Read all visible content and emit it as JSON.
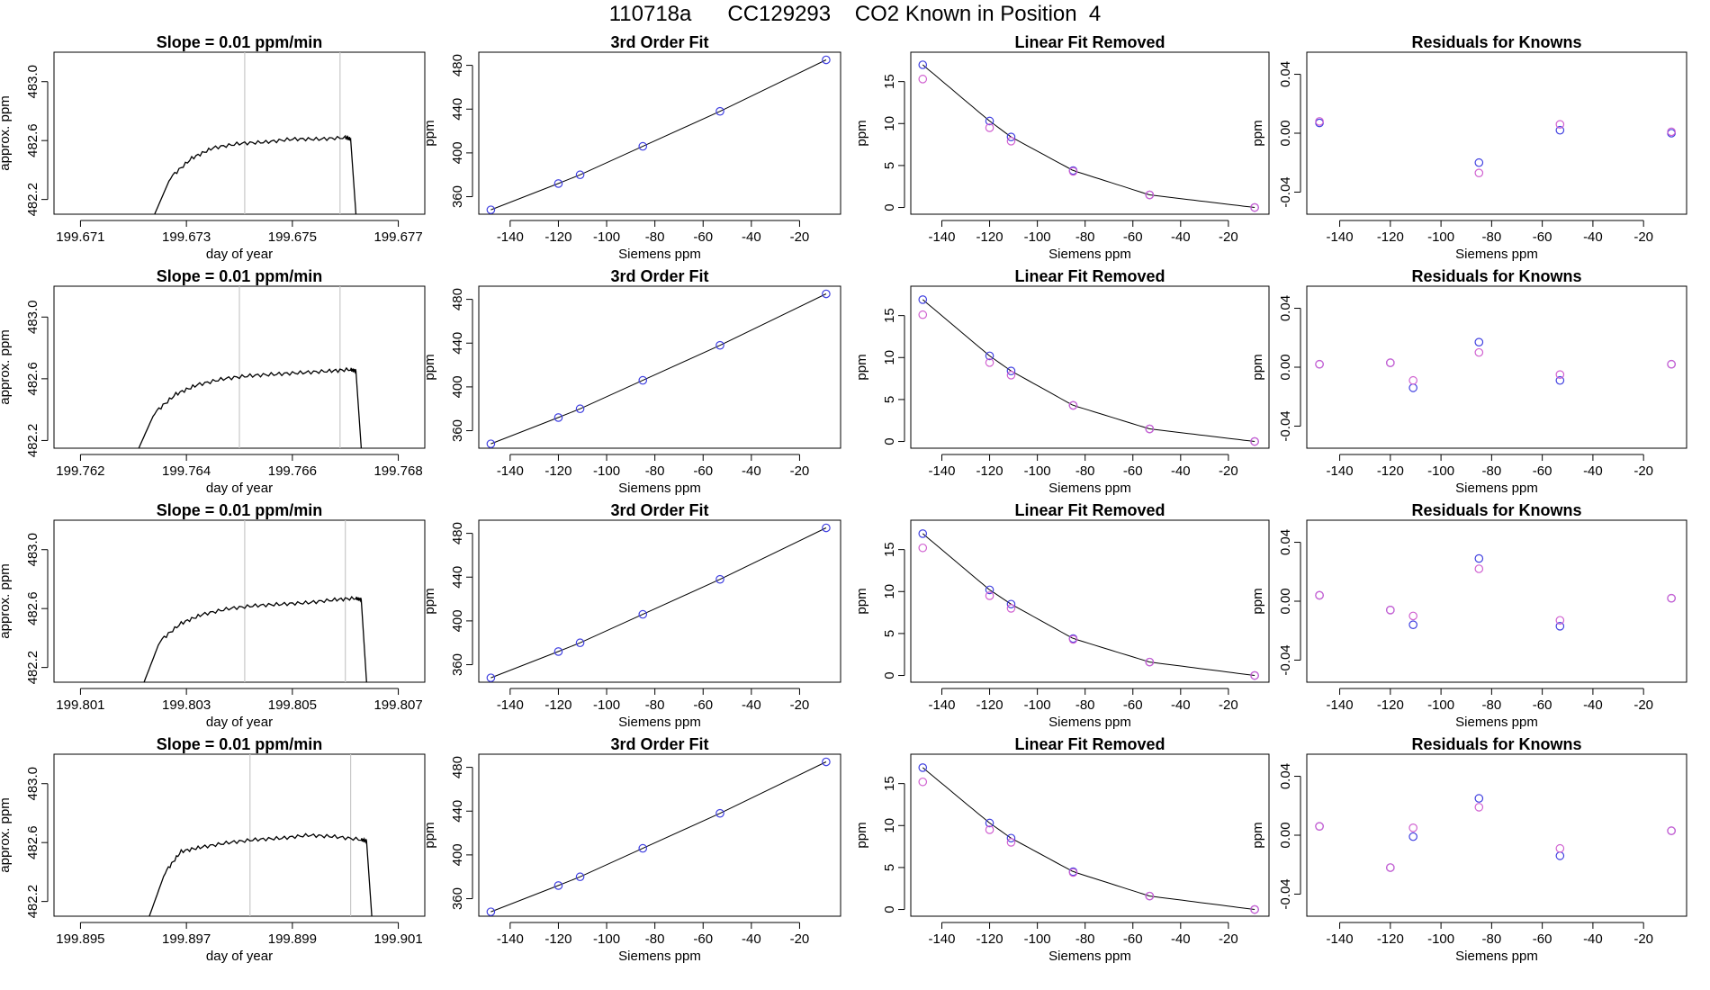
{
  "page_title": "110718a      CC129293    CO2 Known in Position  4",
  "colors": {
    "trace": "#000000",
    "vline": "#c8c8c8",
    "marker_primary": "#4040e0",
    "marker_secondary": "#d060d0",
    "fit_line": "#000000"
  },
  "chart_data": [
    {
      "type": "line",
      "title": "Slope =  0.01  ppm/min",
      "xlabel": "day of year",
      "ylabel": "approx. ppm",
      "xlim": [
        199.6705,
        199.6775
      ],
      "ylim": [
        482.1,
        483.2
      ],
      "xticks": [
        "199.671",
        "199.673",
        "199.675",
        "199.677"
      ],
      "xtick_values": [
        199.671,
        199.673,
        199.675,
        199.677
      ],
      "yticks": [
        "482.2",
        "482.6",
        "483.0"
      ],
      "ytick_values": [
        482.2,
        482.6,
        483.0
      ],
      "vlines": [
        199.6741,
        199.6759
      ],
      "x": [
        199.6724,
        199.6727,
        199.6731,
        199.6735,
        199.674,
        199.6745,
        199.675,
        199.6755,
        199.676,
        199.6761,
        199.6762
      ],
      "y": [
        482.1,
        482.35,
        482.48,
        482.55,
        482.58,
        482.59,
        482.61,
        482.61,
        482.62,
        482.61,
        482.1
      ]
    },
    {
      "type": "scatter",
      "title": "3rd Order Fit",
      "xlabel": "Siemens ppm",
      "ylabel": "ppm",
      "xlim": [
        -153,
        -3
      ],
      "ylim": [
        344,
        492
      ],
      "xticks": [
        "-140",
        "-120",
        "-100",
        "-80",
        "-60",
        "-40",
        "-20"
      ],
      "xtick_values": [
        -140,
        -120,
        -100,
        -80,
        -60,
        -40,
        -20
      ],
      "yticks": [
        "360",
        "400",
        "440",
        "480"
      ],
      "ytick_values": [
        360,
        400,
        440,
        480
      ],
      "x": [
        -148,
        -120,
        -111,
        -85,
        -53,
        -9
      ],
      "y": [
        348,
        372,
        380,
        406,
        438,
        485
      ]
    },
    {
      "type": "scatter",
      "title": "Linear Fit Removed",
      "xlabel": "Siemens ppm",
      "ylabel": "ppm",
      "xlim": [
        -153,
        -3
      ],
      "ylim": [
        -0.8,
        18.5
      ],
      "xticks": [
        "-140",
        "-120",
        "-100",
        "-80",
        "-60",
        "-40",
        "-20"
      ],
      "xtick_values": [
        -140,
        -120,
        -100,
        -80,
        -60,
        -40,
        -20
      ],
      "yticks": [
        "0",
        "5",
        "10",
        "15"
      ],
      "ytick_values": [
        0,
        5,
        10,
        15
      ],
      "x": [
        -148,
        -120,
        -111,
        -85,
        -53,
        -9
      ],
      "series": [
        {
          "values": [
            17.0,
            10.3,
            8.4,
            4.4,
            1.5,
            0.0
          ]
        },
        {
          "values": [
            15.3,
            9.5,
            7.9,
            4.3,
            1.5,
            0.0
          ]
        }
      ]
    },
    {
      "type": "scatter",
      "title": "Residuals for Knowns",
      "xlabel": "Siemens ppm",
      "ylabel": "ppm",
      "xlim": [
        -153,
        -3
      ],
      "ylim": [
        -0.055,
        0.055
      ],
      "xticks": [
        "-140",
        "-120",
        "-100",
        "-80",
        "-60",
        "-40",
        "-20"
      ],
      "xtick_values": [
        -140,
        -120,
        -100,
        -80,
        -60,
        -40,
        -20
      ],
      "yticks": [
        "-0.04",
        "0.00",
        "0.04"
      ],
      "ytick_values": [
        -0.04,
        0.0,
        0.04
      ],
      "x": [
        -148,
        -85,
        -53,
        -9
      ],
      "series": [
        {
          "values": [
            0.007,
            -0.02,
            0.002,
            0.0
          ]
        },
        {
          "values": [
            0.008,
            -0.027,
            0.006,
            0.001
          ]
        }
      ]
    },
    {
      "type": "line",
      "title": "Slope =  0.01  ppm/min",
      "xlabel": "day of year",
      "ylabel": "approx. ppm",
      "xlim": [
        199.7615,
        199.7685
      ],
      "ylim": [
        482.15,
        483.2
      ],
      "xticks": [
        "199.762",
        "199.764",
        "199.766",
        "199.768"
      ],
      "xtick_values": [
        199.762,
        199.764,
        199.766,
        199.768
      ],
      "yticks": [
        "482.2",
        "482.6",
        "483.0"
      ],
      "ytick_values": [
        482.2,
        482.6,
        483.0
      ],
      "vlines": [
        199.765,
        199.7669
      ],
      "x": [
        199.7631,
        199.7634,
        199.7638,
        199.7642,
        199.7647,
        199.7652,
        199.7657,
        199.7662,
        199.7667,
        199.7671,
        199.7672,
        199.7673
      ],
      "y": [
        482.15,
        482.38,
        482.5,
        482.56,
        482.6,
        482.62,
        482.63,
        482.64,
        482.65,
        482.66,
        482.65,
        482.15
      ]
    },
    {
      "type": "scatter",
      "title": "3rd Order Fit",
      "xlabel": "Siemens ppm",
      "ylabel": "ppm",
      "xlim": [
        -153,
        -3
      ],
      "ylim": [
        344,
        492
      ],
      "xticks": [
        "-140",
        "-120",
        "-100",
        "-80",
        "-60",
        "-40",
        "-20"
      ],
      "xtick_values": [
        -140,
        -120,
        -100,
        -80,
        -60,
        -40,
        -20
      ],
      "yticks": [
        "360",
        "400",
        "440",
        "480"
      ],
      "ytick_values": [
        360,
        400,
        440,
        480
      ],
      "x": [
        -148,
        -120,
        -111,
        -85,
        -53,
        -9
      ],
      "y": [
        348,
        372,
        380,
        406,
        438,
        485
      ]
    },
    {
      "type": "scatter",
      "title": "Linear Fit Removed",
      "xlabel": "Siemens ppm",
      "ylabel": "ppm",
      "xlim": [
        -153,
        -3
      ],
      "ylim": [
        -0.8,
        18.5
      ],
      "xticks": [
        "-140",
        "-120",
        "-100",
        "-80",
        "-60",
        "-40",
        "-20"
      ],
      "xtick_values": [
        -140,
        -120,
        -100,
        -80,
        -60,
        -40,
        -20
      ],
      "yticks": [
        "0",
        "5",
        "10",
        "15"
      ],
      "ytick_values": [
        0,
        5,
        10,
        15
      ],
      "x": [
        -148,
        -120,
        -111,
        -85,
        -53,
        -9
      ],
      "series": [
        {
          "values": [
            16.9,
            10.2,
            8.4,
            4.3,
            1.5,
            0.0
          ]
        },
        {
          "values": [
            15.1,
            9.4,
            7.9,
            4.3,
            1.5,
            0.0
          ]
        }
      ]
    },
    {
      "type": "scatter",
      "title": "Residuals for Knowns",
      "xlabel": "Siemens ppm",
      "ylabel": "ppm",
      "xlim": [
        -153,
        -3
      ],
      "ylim": [
        -0.055,
        0.055
      ],
      "xticks": [
        "-140",
        "-120",
        "-100",
        "-80",
        "-60",
        "-40",
        "-20"
      ],
      "xtick_values": [
        -140,
        -120,
        -100,
        -80,
        -60,
        -40,
        -20
      ],
      "yticks": [
        "-0.04",
        "0.00",
        "0.04"
      ],
      "ytick_values": [
        -0.04,
        0.0,
        0.04
      ],
      "x": [
        -148,
        -120,
        -111,
        -85,
        -53,
        -9
      ],
      "series": [
        {
          "values": [
            0.002,
            0.003,
            -0.014,
            0.017,
            -0.009,
            0.002
          ]
        },
        {
          "values": [
            0.002,
            0.003,
            -0.009,
            0.01,
            -0.005,
            0.002
          ]
        }
      ]
    },
    {
      "type": "line",
      "title": "Slope =  0.01  ppm/min",
      "xlabel": "day of year",
      "ylabel": "approx. ppm",
      "xlim": [
        199.8005,
        199.8075
      ],
      "ylim": [
        482.1,
        483.2
      ],
      "xticks": [
        "199.801",
        "199.803",
        "199.805",
        "199.807"
      ],
      "xtick_values": [
        199.801,
        199.803,
        199.805,
        199.807
      ],
      "yticks": [
        "482.2",
        "482.6",
        "483.0"
      ],
      "ytick_values": [
        482.2,
        482.6,
        483.0
      ],
      "vlines": [
        199.8041,
        199.806
      ],
      "x": [
        199.8022,
        199.8025,
        199.8029,
        199.8033,
        199.8038,
        199.8043,
        199.8048,
        199.8053,
        199.8058,
        199.8062,
        199.8063,
        199.8064
      ],
      "y": [
        482.1,
        482.38,
        482.5,
        482.56,
        482.6,
        482.62,
        482.63,
        482.64,
        482.66,
        482.67,
        482.66,
        482.1
      ]
    },
    {
      "type": "scatter",
      "title": "3rd Order Fit",
      "xlabel": "Siemens ppm",
      "ylabel": "ppm",
      "xlim": [
        -153,
        -3
      ],
      "ylim": [
        344,
        492
      ],
      "xticks": [
        "-140",
        "-120",
        "-100",
        "-80",
        "-60",
        "-40",
        "-20"
      ],
      "xtick_values": [
        -140,
        -120,
        -100,
        -80,
        -60,
        -40,
        -20
      ],
      "yticks": [
        "360",
        "400",
        "440",
        "480"
      ],
      "ytick_values": [
        360,
        400,
        440,
        480
      ],
      "x": [
        -148,
        -120,
        -111,
        -85,
        -53,
        -9
      ],
      "y": [
        348,
        372,
        380,
        406,
        438,
        485
      ]
    },
    {
      "type": "scatter",
      "title": "Linear Fit Removed",
      "xlabel": "Siemens ppm",
      "ylabel": "ppm",
      "xlim": [
        -153,
        -3
      ],
      "ylim": [
        -0.8,
        18.5
      ],
      "xticks": [
        "-140",
        "-120",
        "-100",
        "-80",
        "-60",
        "-40",
        "-20"
      ],
      "xtick_values": [
        -140,
        -120,
        -100,
        -80,
        -60,
        -40,
        -20
      ],
      "yticks": [
        "0",
        "5",
        "10",
        "15"
      ],
      "ytick_values": [
        0,
        5,
        10,
        15
      ],
      "x": [
        -148,
        -120,
        -111,
        -85,
        -53,
        -9
      ],
      "series": [
        {
          "values": [
            16.9,
            10.2,
            8.5,
            4.4,
            1.6,
            0.0
          ]
        },
        {
          "values": [
            15.2,
            9.5,
            8.0,
            4.3,
            1.6,
            0.0
          ]
        }
      ]
    },
    {
      "type": "scatter",
      "title": "Residuals for Knowns",
      "xlabel": "Siemens ppm",
      "ylabel": "ppm",
      "xlim": [
        -153,
        -3
      ],
      "ylim": [
        -0.055,
        0.055
      ],
      "xticks": [
        "-140",
        "-120",
        "-100",
        "-80",
        "-60",
        "-40",
        "-20"
      ],
      "xtick_values": [
        -140,
        -120,
        -100,
        -80,
        -60,
        -40,
        -20
      ],
      "yticks": [
        "-0.04",
        "0.00",
        "0.04"
      ],
      "ytick_values": [
        -0.04,
        0.0,
        0.04
      ],
      "x": [
        -148,
        -120,
        -111,
        -85,
        -53,
        -9
      ],
      "series": [
        {
          "values": [
            0.004,
            -0.006,
            -0.016,
            0.029,
            -0.017,
            0.002
          ]
        },
        {
          "values": [
            0.004,
            -0.006,
            -0.01,
            0.022,
            -0.013,
            0.002
          ]
        }
      ]
    },
    {
      "type": "line",
      "title": "Slope =  0.01  ppm/min",
      "xlabel": "day of year",
      "ylabel": "approx. ppm",
      "xlim": [
        199.8945,
        199.9015
      ],
      "ylim": [
        482.1,
        483.2
      ],
      "xticks": [
        "199.895",
        "199.897",
        "199.899",
        "199.901"
      ],
      "xtick_values": [
        199.895,
        199.897,
        199.899,
        199.901
      ],
      "yticks": [
        "482.2",
        "482.6",
        "483.0"
      ],
      "ytick_values": [
        482.2,
        482.6,
        483.0
      ],
      "vlines": [
        199.8982,
        199.9001
      ],
      "x": [
        199.8963,
        199.8966,
        199.8969,
        199.8973,
        199.8978,
        199.8983,
        199.8988,
        199.8993,
        199.8998,
        199.9003,
        199.9004,
        199.9005
      ],
      "y": [
        482.1,
        482.4,
        482.54,
        482.57,
        482.6,
        482.62,
        482.63,
        482.65,
        482.64,
        482.62,
        482.61,
        482.1
      ]
    },
    {
      "type": "scatter",
      "title": "3rd Order Fit",
      "xlabel": "Siemens ppm",
      "ylabel": "ppm",
      "xlim": [
        -153,
        -3
      ],
      "ylim": [
        344,
        492
      ],
      "xticks": [
        "-140",
        "-120",
        "-100",
        "-80",
        "-60",
        "-40",
        "-20"
      ],
      "xtick_values": [
        -140,
        -120,
        -100,
        -80,
        -60,
        -40,
        -20
      ],
      "yticks": [
        "360",
        "400",
        "440",
        "480"
      ],
      "ytick_values": [
        360,
        400,
        440,
        480
      ],
      "x": [
        -148,
        -120,
        -111,
        -85,
        -53,
        -9
      ],
      "y": [
        348,
        372,
        380,
        406,
        438,
        485
      ]
    },
    {
      "type": "scatter",
      "title": "Linear Fit Removed",
      "xlabel": "Siemens ppm",
      "ylabel": "ppm",
      "xlim": [
        -153,
        -3
      ],
      "ylim": [
        -0.8,
        18.5
      ],
      "xticks": [
        "-140",
        "-120",
        "-100",
        "-80",
        "-60",
        "-40",
        "-20"
      ],
      "xtick_values": [
        -140,
        -120,
        -100,
        -80,
        -60,
        -40,
        -20
      ],
      "yticks": [
        "0",
        "5",
        "10",
        "15"
      ],
      "ytick_values": [
        0,
        5,
        10,
        15
      ],
      "x": [
        -148,
        -120,
        -111,
        -85,
        -53,
        -9
      ],
      "series": [
        {
          "values": [
            16.9,
            10.3,
            8.5,
            4.5,
            1.6,
            0.0
          ]
        },
        {
          "values": [
            15.2,
            9.5,
            8.0,
            4.4,
            1.6,
            0.0
          ]
        }
      ]
    },
    {
      "type": "scatter",
      "title": "Residuals for Knowns",
      "xlabel": "Siemens ppm",
      "ylabel": "ppm",
      "xlim": [
        -153,
        -3
      ],
      "ylim": [
        -0.055,
        0.055
      ],
      "xticks": [
        "-140",
        "-120",
        "-100",
        "-80",
        "-60",
        "-40",
        "-20"
      ],
      "xtick_values": [
        -140,
        -120,
        -100,
        -80,
        -60,
        -40,
        -20
      ],
      "yticks": [
        "-0.04",
        "0.00",
        "0.04"
      ],
      "ytick_values": [
        -0.04,
        0.0,
        0.04
      ],
      "x": [
        -148,
        -120,
        -111,
        -85,
        -53,
        -9
      ],
      "series": [
        {
          "values": [
            0.006,
            -0.022,
            -0.001,
            0.025,
            -0.014,
            0.003
          ]
        },
        {
          "values": [
            0.006,
            -0.022,
            0.005,
            0.019,
            -0.009,
            0.003
          ]
        }
      ]
    }
  ]
}
